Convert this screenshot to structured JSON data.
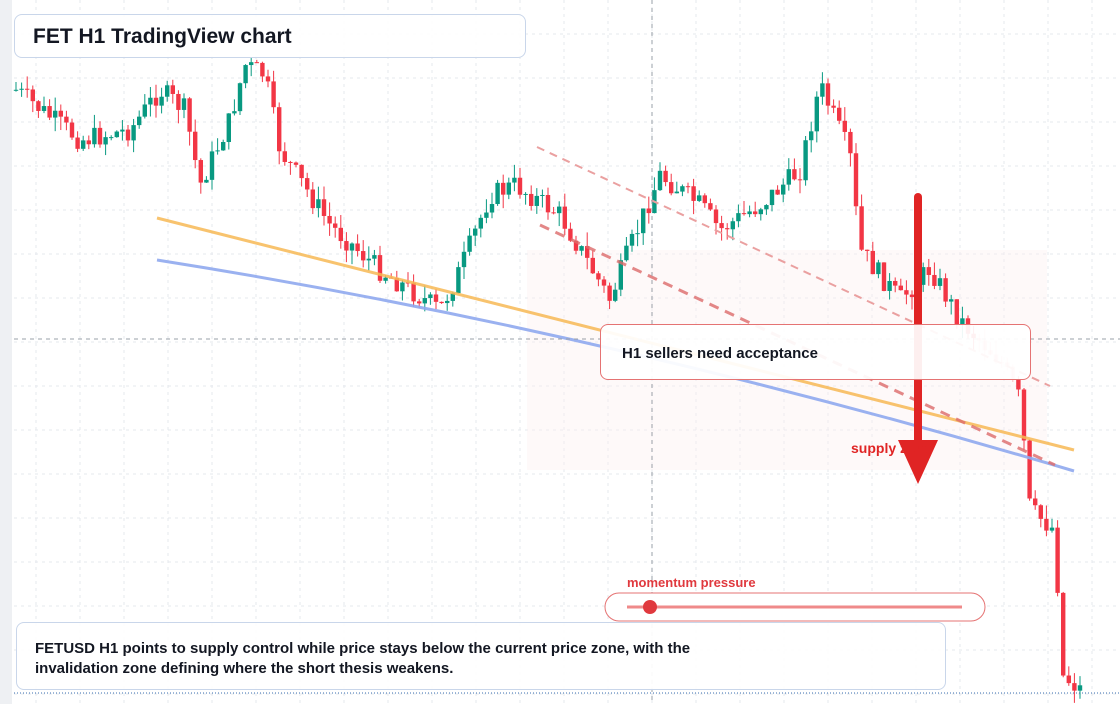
{
  "header": {
    "title": "FET H1 TradingView chart"
  },
  "annotations": {
    "callout": "H1 sellers need acceptance",
    "zone_label": "supply zone",
    "momentum_label": "momentum pressure"
  },
  "caption": "FETUSD H1 points to supply control while price stays below the current price zone, with the invalidation zone defining where the short thesis weakens."
}
